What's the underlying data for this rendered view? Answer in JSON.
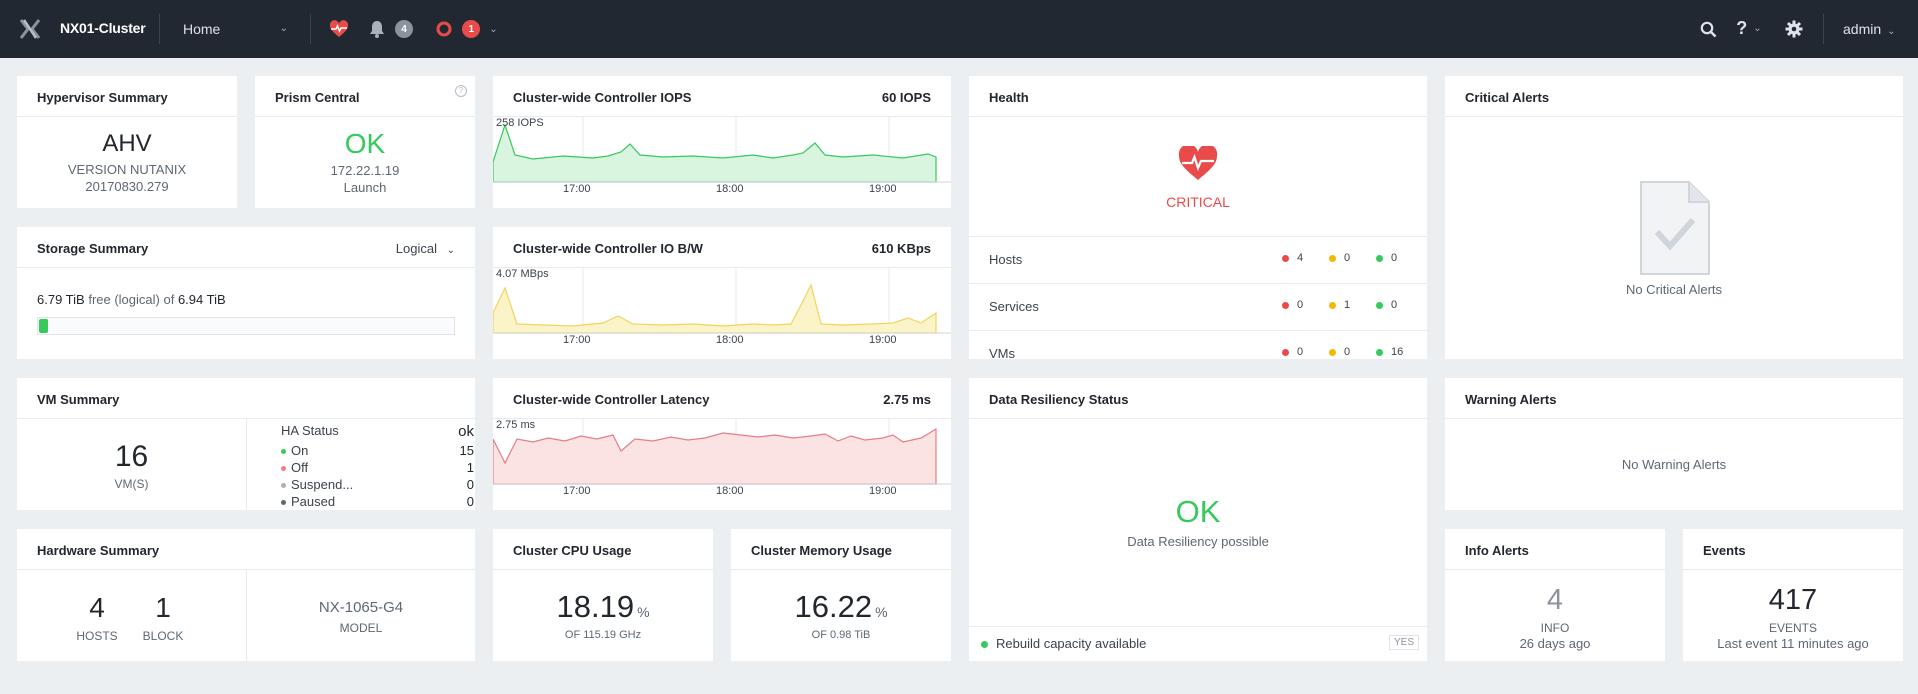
{
  "topbar": {
    "cluster_name": "NX01-Cluster",
    "nav_selected": "Home",
    "alerts_count": "4",
    "critical_count": "1",
    "user": "admin"
  },
  "hypervisor": {
    "title": "Hypervisor Summary",
    "name": "AHV",
    "version_line1": "VERSION NUTANIX",
    "version_line2": "20170830.279"
  },
  "prism": {
    "title": "Prism Central",
    "status": "OK",
    "ip": "172.22.1.19",
    "action": "Launch"
  },
  "storage": {
    "title": "Storage Summary",
    "mode": "Logical",
    "free_value": "6.79 TiB",
    "free_text": "free (logical) of",
    "total": "6.94 TiB",
    "used_fraction": 0.021
  },
  "vm_summary": {
    "title": "VM Summary",
    "count": "16",
    "count_label": "VM(S)",
    "ha_label": "HA Status",
    "ha_status": "ok",
    "rows": [
      {
        "label": "On",
        "value": "15",
        "color": "#36c95c"
      },
      {
        "label": "Off",
        "value": "1",
        "color": "#f27c7c"
      },
      {
        "label": "Suspend...",
        "value": "0",
        "color": "#aab1bb"
      },
      {
        "label": "Paused",
        "value": "0",
        "color": "#5d6874"
      }
    ]
  },
  "hardware": {
    "title": "Hardware Summary",
    "hosts": "4",
    "hosts_label": "HOSTS",
    "blocks": "1",
    "blocks_label": "BLOCK",
    "model": "NX-1065-G4",
    "model_label": "MODEL"
  },
  "charts": {
    "iops": {
      "title": "Cluster-wide Controller IOPS",
      "current": "60 IOPS",
      "peak_label": "258 IOPS",
      "x_ticks": [
        "17:00",
        "18:00",
        "19:00"
      ]
    },
    "bw": {
      "title": "Cluster-wide Controller IO B/W",
      "current": "610 KBps",
      "peak_label": "4.07 MBps",
      "x_ticks": [
        "17:00",
        "18:00",
        "19:00"
      ]
    },
    "latency": {
      "title": "Cluster-wide Controller Latency",
      "current": "2.75 ms",
      "peak_label": "2.75 ms",
      "x_ticks": [
        "17:00",
        "18:00",
        "19:00"
      ]
    }
  },
  "cpu": {
    "title": "Cluster CPU Usage",
    "value": "18.19",
    "unit": "%",
    "sub": "OF 115.19 GHz"
  },
  "memory": {
    "title": "Cluster Memory Usage",
    "value": "16.22",
    "unit": "%",
    "sub": "OF 0.98 TiB"
  },
  "health": {
    "title": "Health",
    "status": "CRITICAL",
    "rows": [
      {
        "label": "Hosts",
        "critical": "4",
        "warning": "0",
        "good": "0"
      },
      {
        "label": "Services",
        "critical": "0",
        "warning": "1",
        "good": "0"
      },
      {
        "label": "VMs",
        "critical": "0",
        "warning": "0",
        "good": "16"
      }
    ]
  },
  "resiliency": {
    "title": "Data Resiliency Status",
    "status": "OK",
    "sub": "Data Resiliency possible",
    "footer": "Rebuild capacity available",
    "footer_value": "YES"
  },
  "critical_alerts": {
    "title": "Critical Alerts",
    "empty": "No Critical Alerts"
  },
  "warning_alerts": {
    "title": "Warning Alerts",
    "empty": "No Warning Alerts"
  },
  "info_alerts": {
    "title": "Info Alerts",
    "count": "4",
    "label": "INFO",
    "sub": "26 days ago"
  },
  "events": {
    "title": "Events",
    "count": "417",
    "label": "EVENTS",
    "sub": "Last event 11 minutes ago"
  },
  "colors": {
    "accent_green": "#36c95c",
    "critical_red": "#e94b4b",
    "warning_yellow": "#f5b800",
    "topbar": "#222832"
  }
}
